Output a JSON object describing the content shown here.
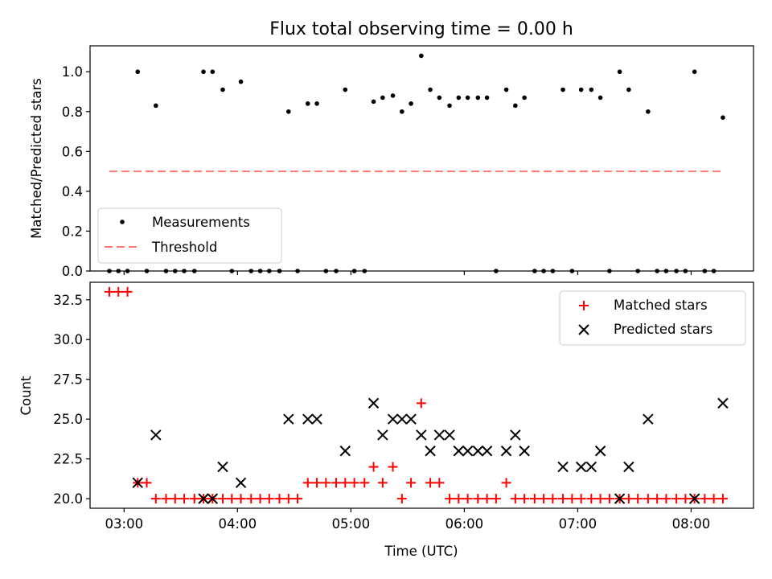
{
  "chart_data": [
    {
      "type": "scatter",
      "title": "Flux total observing time = 0.00 h",
      "xlabel": "",
      "ylabel": "Matched/Predicted stars",
      "xlim": [
        2.7,
        8.55
      ],
      "ylim": [
        0.0,
        1.13
      ],
      "yticks": [
        0.0,
        0.2,
        0.4,
        0.6,
        0.8,
        1.0
      ],
      "ytick_labels": [
        "0.0",
        "0.2",
        "0.4",
        "0.6",
        "0.8",
        "1.0"
      ],
      "legend": "lower-left",
      "series": [
        {
          "name": "Measurements",
          "marker": "dot",
          "color": "#000000",
          "points": [
            [
              2.87,
              0.0
            ],
            [
              2.95,
              0.0
            ],
            [
              3.03,
              0.0
            ],
            [
              3.12,
              1.0
            ],
            [
              3.2,
              0.0
            ],
            [
              3.28,
              0.83
            ],
            [
              3.37,
              0.0
            ],
            [
              3.45,
              0.0
            ],
            [
              3.53,
              0.0
            ],
            [
              3.62,
              0.0
            ],
            [
              3.7,
              1.0
            ],
            [
              3.78,
              1.0
            ],
            [
              3.87,
              0.91
            ],
            [
              3.95,
              0.0
            ],
            [
              4.03,
              0.95
            ],
            [
              4.12,
              0.0
            ],
            [
              4.2,
              0.0
            ],
            [
              4.28,
              0.0
            ],
            [
              4.37,
              0.0
            ],
            [
              4.45,
              0.8
            ],
            [
              4.53,
              0.0
            ],
            [
              4.62,
              0.84
            ],
            [
              4.7,
              0.84
            ],
            [
              4.78,
              0.0
            ],
            [
              4.87,
              0.0
            ],
            [
              4.95,
              0.91
            ],
            [
              5.03,
              0.0
            ],
            [
              5.12,
              0.0
            ],
            [
              5.2,
              0.85
            ],
            [
              5.28,
              0.87
            ],
            [
              5.37,
              0.88
            ],
            [
              5.45,
              0.8
            ],
            [
              5.53,
              0.84
            ],
            [
              5.62,
              1.08
            ],
            [
              5.7,
              0.91
            ],
            [
              5.78,
              0.87
            ],
            [
              5.87,
              0.83
            ],
            [
              5.95,
              0.87
            ],
            [
              6.03,
              0.87
            ],
            [
              6.12,
              0.87
            ],
            [
              6.2,
              0.87
            ],
            [
              6.28,
              0.0
            ],
            [
              6.37,
              0.91
            ],
            [
              6.45,
              0.83
            ],
            [
              6.53,
              0.87
            ],
            [
              6.62,
              0.0
            ],
            [
              6.7,
              0.0
            ],
            [
              6.78,
              0.0
            ],
            [
              6.87,
              0.91
            ],
            [
              6.95,
              0.0
            ],
            [
              7.03,
              0.91
            ],
            [
              7.12,
              0.91
            ],
            [
              7.2,
              0.87
            ],
            [
              7.28,
              0.0
            ],
            [
              7.37,
              1.0
            ],
            [
              7.45,
              0.91
            ],
            [
              7.53,
              0.0
            ],
            [
              7.62,
              0.8
            ],
            [
              7.7,
              0.0
            ],
            [
              7.78,
              0.0
            ],
            [
              7.87,
              0.0
            ],
            [
              7.95,
              0.0
            ],
            [
              8.03,
              1.0
            ],
            [
              8.12,
              0.0
            ],
            [
              8.2,
              0.0
            ],
            [
              8.28,
              0.77
            ]
          ]
        },
        {
          "name": "Threshold",
          "style": "dashed",
          "color": "#ff7777",
          "x": [
            2.87,
            8.28
          ],
          "y": [
            0.5,
            0.5
          ]
        }
      ]
    },
    {
      "type": "scatter",
      "title": "",
      "xlabel": "Time (UTC)",
      "ylabel": "Count",
      "xlim": [
        2.7,
        8.55
      ],
      "ylim": [
        19.4,
        33.6
      ],
      "xticks": [
        3,
        4,
        5,
        6,
        7,
        8
      ],
      "xtick_labels": [
        "03:00",
        "04:00",
        "05:00",
        "06:00",
        "07:00",
        "08:00"
      ],
      "yticks": [
        20.0,
        22.5,
        25.0,
        27.5,
        30.0,
        32.5
      ],
      "ytick_labels": [
        "20.0",
        "22.5",
        "25.0",
        "27.5",
        "30.0",
        "32.5"
      ],
      "legend": "top-right",
      "series": [
        {
          "name": "Matched stars",
          "marker": "plus",
          "color": "#ff0000",
          "x": [
            2.87,
            2.95,
            3.03,
            3.12,
            3.2,
            3.28,
            3.37,
            3.45,
            3.53,
            3.62,
            3.7,
            3.78,
            3.87,
            3.95,
            4.03,
            4.12,
            4.2,
            4.28,
            4.37,
            4.45,
            4.53,
            4.62,
            4.7,
            4.78,
            4.87,
            4.95,
            5.03,
            5.12,
            5.2,
            5.28,
            5.37,
            5.45,
            5.53,
            5.62,
            5.7,
            5.78,
            5.87,
            5.95,
            6.03,
            6.12,
            6.2,
            6.28,
            6.37,
            6.45,
            6.53,
            6.62,
            6.7,
            6.78,
            6.87,
            6.95,
            7.03,
            7.12,
            7.2,
            7.28,
            7.37,
            7.45,
            7.53,
            7.62,
            7.7,
            7.78,
            7.87,
            7.95,
            8.03,
            8.12,
            8.2,
            8.28
          ],
          "y": [
            33,
            33,
            33,
            21,
            21,
            20,
            20,
            20,
            20,
            20,
            20,
            20,
            20,
            20,
            20,
            20,
            20,
            20,
            20,
            20,
            20,
            21,
            21,
            21,
            21,
            21,
            21,
            21,
            22,
            21,
            22,
            20,
            21,
            26,
            21,
            21,
            20,
            20,
            20,
            20,
            20,
            20,
            21,
            20,
            20,
            20,
            20,
            20,
            20,
            20,
            20,
            20,
            20,
            20,
            20,
            20,
            20,
            20,
            20,
            20,
            20,
            20,
            20,
            20,
            20,
            20
          ]
        },
        {
          "name": "Predicted stars",
          "marker": "x",
          "color": "#000000",
          "x": [
            3.12,
            3.28,
            3.7,
            3.78,
            3.87,
            4.03,
            4.45,
            4.62,
            4.7,
            4.95,
            5.2,
            5.28,
            5.37,
            5.45,
            5.53,
            5.62,
            5.7,
            5.78,
            5.87,
            5.95,
            6.03,
            6.12,
            6.2,
            6.37,
            6.45,
            6.53,
            6.87,
            7.03,
            7.12,
            7.2,
            7.37,
            7.45,
            7.62,
            8.03,
            8.28
          ],
          "y": [
            21,
            24,
            20,
            20,
            22,
            21,
            25,
            25,
            25,
            23,
            26,
            24,
            25,
            25,
            25,
            24,
            23,
            24,
            24,
            23,
            23,
            23,
            23,
            23,
            24,
            23,
            22,
            22,
            22,
            23,
            20,
            22,
            25,
            20,
            26
          ]
        }
      ]
    }
  ]
}
